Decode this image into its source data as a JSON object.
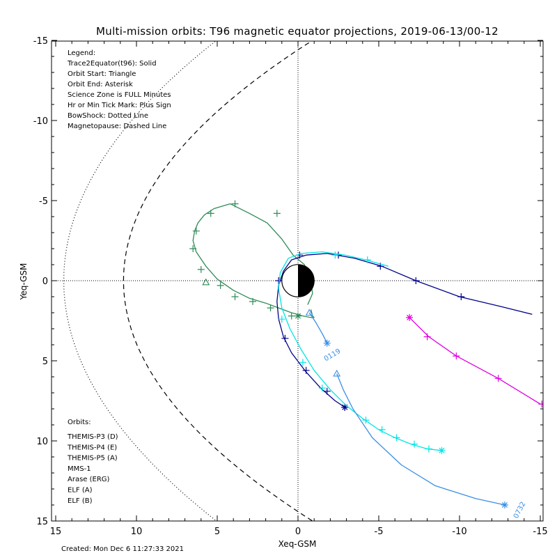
{
  "chart_data": {
    "type": "line",
    "title": "Multi-mission orbits: T96 magnetic equator projections, 2019-06-13/00-12",
    "xlabel": "Xeq-GSM",
    "ylabel": "Yeq-GSM",
    "xlim": [
      15,
      -15
    ],
    "ylim": [
      -15,
      15
    ],
    "x_ticks": [
      15,
      10,
      5,
      0,
      -5,
      -10,
      -15
    ],
    "x_tick_labels": [
      "15",
      "10",
      "5",
      "0",
      "-5",
      "-10",
      "-15"
    ],
    "y_ticks": [
      -15,
      -10,
      -5,
      0,
      5,
      10,
      15
    ],
    "y_tick_labels": [
      "-15",
      "-10",
      "-5",
      "0",
      "5",
      "10",
      "15"
    ],
    "grid": "dotted zero lines",
    "legend_lines": [
      "Legend:",
      "Trace2Equator(t96): Solid",
      "Orbit Start: Triangle",
      "Orbit End: Asterisk",
      "Science Zone is FULL Minutes",
      "Hr or Min Tick Mark: Plus Sign",
      "BowShock: Dotted Line",
      "Magnetopause: Dashed Line"
    ],
    "orbits_header": "Orbits:",
    "orbits_legend": [
      {
        "label": "THEMIS-P3 (D)",
        "color": "#00e5e5"
      },
      {
        "label": "THEMIS-P4 (E)",
        "color": "#00008b"
      },
      {
        "label": "THEMIS-P5 (A)",
        "color": "#e000e0"
      },
      {
        "label": "MMS-1",
        "color": "#000000"
      },
      {
        "label": "Arase (ERG)",
        "color": "#2e8b57"
      },
      {
        "label": "ELF (A)",
        "color": "#3a8ee6"
      },
      {
        "label": "ELF (B)",
        "color": "#e00000"
      }
    ],
    "created": "Created: Mon Dec  6 11:27:33 2021",
    "series": [
      {
        "name": "Arase (ERG)",
        "color": "#2e8b57",
        "x": [
          -0.6,
          -0.9,
          -0.8,
          -0.6,
          -0.4,
          0.3,
          1.0,
          1.9,
          3.0,
          4.2,
          5.2,
          5.8,
          6.2,
          6.4,
          6.5,
          6.3,
          5.7,
          5.0,
          4.0,
          3.0,
          2.0,
          1.2,
          0.4,
          -0.3,
          -0.8,
          -1.0,
          -0.9,
          -0.8
        ],
        "y": [
          1.5,
          0.8,
          0.1,
          -0.5,
          -1.0,
          -1.6,
          -2.6,
          -3.6,
          -4.2,
          -4.8,
          -4.5,
          -4.1,
          -3.6,
          -3.1,
          -2.5,
          -1.8,
          -0.9,
          -0.1,
          0.6,
          1.1,
          1.4,
          1.7,
          2.0,
          2.2,
          2.3,
          2.3,
          2.2,
          1.8
        ],
        "ticks": [
          [
            6.0,
            -0.7
          ],
          [
            6.5,
            -2.0
          ],
          [
            6.3,
            -3.1
          ],
          [
            5.4,
            -4.2
          ],
          [
            3.9,
            -4.8
          ],
          [
            1.3,
            -4.2
          ],
          [
            4.8,
            0.3
          ],
          [
            3.9,
            1.0
          ],
          [
            2.8,
            1.3
          ],
          [
            1.7,
            1.7
          ],
          [
            0.4,
            2.2
          ]
        ],
        "start": [
          5.7,
          0.1
        ],
        "end": [
          0.0,
          2.2
        ]
      },
      {
        "name": "THEMIS-P4 (E)",
        "color": "#00008b",
        "x": [
          -2.9,
          -2.3,
          -1.4,
          -0.5,
          0.4,
          0.9,
          1.2,
          1.3,
          1.2,
          0.9,
          0.4,
          -0.5,
          -1.8,
          -3.5,
          -5.2,
          -7.3,
          -10.0,
          -12.5,
          -14.5
        ],
        "y": [
          7.9,
          7.5,
          6.7,
          5.7,
          4.5,
          3.5,
          2.4,
          1.3,
          0.3,
          -0.6,
          -1.3,
          -1.6,
          -1.7,
          -1.4,
          -0.9,
          0.0,
          1.0,
          1.6,
          2.1
        ],
        "ticks": [
          [
            -2.9,
            7.9
          ],
          [
            -1.8,
            6.9
          ],
          [
            -0.5,
            5.6
          ],
          [
            0.8,
            3.6
          ],
          [
            1.2,
            0.0
          ],
          [
            -0.1,
            -1.6
          ],
          [
            -2.5,
            -1.6
          ],
          [
            -5.1,
            -0.9
          ],
          [
            -7.3,
            0.0
          ],
          [
            -10.1,
            1.0
          ]
        ],
        "start": null,
        "end": [
          -2.9,
          7.9
        ]
      },
      {
        "name": "THEMIS-P3 (D)",
        "color": "#00e5e5",
        "x": [
          -8.9,
          -8.0,
          -7.0,
          -6.0,
          -5.0,
          -4.0,
          -3.0,
          -2.0,
          -1.0,
          -0.2,
          0.5,
          1.0,
          1.2,
          1.1,
          0.6,
          -0.2,
          -1.5,
          -2.9,
          -4.2,
          -5.6
        ],
        "y": [
          10.6,
          10.5,
          10.2,
          9.8,
          9.3,
          8.6,
          7.8,
          6.8,
          5.6,
          4.3,
          3.0,
          1.7,
          0.5,
          -0.5,
          -1.4,
          -1.7,
          -1.8,
          -1.6,
          -1.3,
          -0.9
        ],
        "ticks": [
          [
            -8.1,
            10.5
          ],
          [
            -7.2,
            10.2
          ],
          [
            -6.1,
            9.8
          ],
          [
            -5.2,
            9.3
          ],
          [
            -4.2,
            8.7
          ],
          [
            -1.5,
            6.7
          ],
          [
            -0.3,
            5.1
          ],
          [
            1.0,
            2.4
          ],
          [
            -2.3,
            -1.6
          ],
          [
            -4.3,
            -1.3
          ]
        ],
        "start": null,
        "end": [
          -8.9,
          10.6
        ]
      },
      {
        "name": "THEMIS-P5 (A)",
        "color": "#e000e0",
        "x": [
          -6.9,
          -8.1,
          -9.8,
          -12.4,
          -15.0
        ],
        "y": [
          2.3,
          3.5,
          4.7,
          6.1,
          7.7
        ],
        "ticks": [
          [
            -8.0,
            3.5
          ],
          [
            -9.8,
            4.7
          ],
          [
            -12.4,
            6.1
          ],
          [
            -15.1,
            7.7
          ]
        ],
        "start": null,
        "end": [
          -6.9,
          2.3
        ]
      },
      {
        "name": "ELF (A) 0119",
        "color": "#3a8ee6",
        "x": [
          -0.7,
          -1.1,
          -1.5,
          -1.8
        ],
        "y": [
          2.0,
          2.6,
          3.3,
          3.9
        ],
        "ticks": [],
        "start": [
          -0.7,
          2.0
        ],
        "end": [
          -1.8,
          3.9
        ],
        "label": "0119"
      },
      {
        "name": "ELF (A) 0732",
        "color": "#3a8ee6",
        "x": [
          -2.4,
          -2.8,
          -3.4,
          -4.6,
          -6.4,
          -8.5,
          -11.0,
          -12.8
        ],
        "y": [
          5.8,
          6.8,
          8.0,
          9.8,
          11.5,
          12.8,
          13.6,
          14.0
        ],
        "ticks": [],
        "start": [
          -2.4,
          5.8
        ],
        "end": [
          -12.8,
          14.0
        ],
        "label": "0732"
      }
    ],
    "earth": {
      "radius": 1.0,
      "night_side": "right"
    },
    "bow_shock": {
      "nose_x": 14.5,
      "a": 0.042
    },
    "magnetopause": {
      "nose_x": 10.8,
      "a": 0.052
    }
  }
}
